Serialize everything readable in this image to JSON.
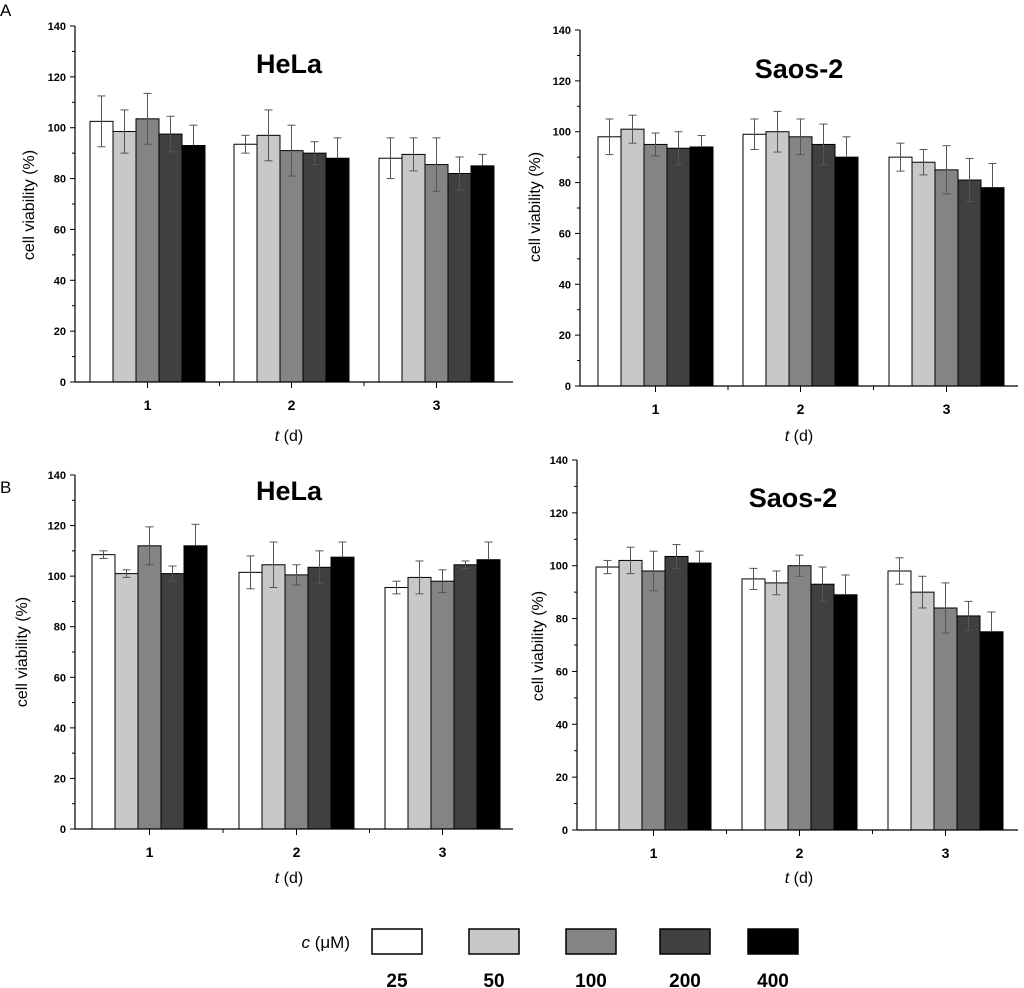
{
  "panels": [
    "A",
    "B"
  ],
  "legend": {
    "label": "c (μM)",
    "label_var": "c",
    "label_unit": "(μM)",
    "entries": [
      "25",
      "50",
      "100",
      "200",
      "400"
    ],
    "colors": [
      "#ffffff",
      "#c8c8c8",
      "#848484",
      "#404040",
      "#000000"
    ]
  },
  "chart_data": [
    {
      "type": "bar",
      "panel": "A",
      "title": "HeLa",
      "xlabel": "t (d)",
      "xlabel_var": "t",
      "xlabel_unit": "(d)",
      "ylabel": "cell viability (%)",
      "ylim": [
        0,
        140
      ],
      "yticks": [
        0,
        20,
        40,
        60,
        80,
        100,
        120,
        140
      ],
      "categories": [
        "1",
        "2",
        "3"
      ],
      "series": [
        {
          "name": "25",
          "values": [
            102.5,
            93.5,
            88
          ],
          "errors": [
            10,
            3.5,
            8
          ]
        },
        {
          "name": "50",
          "values": [
            98.5,
            97,
            89.5
          ],
          "errors": [
            8.5,
            10,
            6.5
          ]
        },
        {
          "name": "100",
          "values": [
            103.5,
            91,
            85.5
          ],
          "errors": [
            10,
            10,
            10.5
          ]
        },
        {
          "name": "200",
          "values": [
            97.5,
            90,
            82
          ],
          "errors": [
            7,
            4.5,
            6.5
          ]
        },
        {
          "name": "400",
          "values": [
            93,
            88,
            85
          ],
          "errors": [
            8,
            8,
            4.5
          ]
        }
      ]
    },
    {
      "type": "bar",
      "panel": "A",
      "title": "Saos-2",
      "xlabel": "t (d)",
      "xlabel_var": "t",
      "xlabel_unit": "(d)",
      "ylabel": "cell viability (%)",
      "ylim": [
        0,
        140
      ],
      "yticks": [
        0,
        20,
        40,
        60,
        80,
        100,
        120,
        140
      ],
      "categories": [
        "1",
        "2",
        "3"
      ],
      "series": [
        {
          "name": "25",
          "values": [
            98,
            99,
            90
          ],
          "errors": [
            7,
            6,
            5.5
          ]
        },
        {
          "name": "50",
          "values": [
            101,
            100,
            88
          ],
          "errors": [
            5.5,
            8,
            5
          ]
        },
        {
          "name": "100",
          "values": [
            95,
            98,
            85
          ],
          "errors": [
            4.5,
            7,
            9.5
          ]
        },
        {
          "name": "200",
          "values": [
            93.5,
            95,
            81
          ],
          "errors": [
            6.5,
            8,
            8.5
          ]
        },
        {
          "name": "400",
          "values": [
            94,
            90,
            78
          ],
          "errors": [
            4.5,
            8,
            9.5
          ]
        }
      ]
    },
    {
      "type": "bar",
      "panel": "B",
      "title": "HeLa",
      "xlabel": "t (d)",
      "xlabel_var": "t",
      "xlabel_unit": "(d)",
      "ylabel": "cell viability (%)",
      "ylim": [
        0,
        140
      ],
      "yticks": [
        0,
        20,
        40,
        60,
        80,
        100,
        120,
        140
      ],
      "categories": [
        "1",
        "2",
        "3"
      ],
      "series": [
        {
          "name": "25",
          "values": [
            108.5,
            101.5,
            95.5
          ],
          "errors": [
            1.5,
            6.5,
            2.5
          ]
        },
        {
          "name": "50",
          "values": [
            101,
            104.5,
            99.5
          ],
          "errors": [
            1.5,
            9,
            6.5
          ]
        },
        {
          "name": "100",
          "values": [
            112,
            100.5,
            98
          ],
          "errors": [
            7.5,
            4,
            4.5
          ]
        },
        {
          "name": "200",
          "values": [
            101,
            103.5,
            104.5
          ],
          "errors": [
            3,
            6.5,
            1.5
          ]
        },
        {
          "name": "400",
          "values": [
            112,
            107.5,
            106.5
          ],
          "errors": [
            8.5,
            6,
            7
          ]
        }
      ]
    },
    {
      "type": "bar",
      "panel": "B",
      "title": "Saos-2",
      "xlabel": "t (d)",
      "xlabel_var": "t",
      "xlabel_unit": "(d)",
      "ylabel": "cell viability (%)",
      "ylim": [
        0,
        140
      ],
      "yticks": [
        0,
        20,
        40,
        60,
        80,
        100,
        120,
        140
      ],
      "categories": [
        "1",
        "2",
        "3"
      ],
      "series": [
        {
          "name": "25",
          "values": [
            99.5,
            95,
            98
          ],
          "errors": [
            2.5,
            4,
            5
          ]
        },
        {
          "name": "50",
          "values": [
            102,
            93.5,
            90
          ],
          "errors": [
            5,
            4.5,
            6
          ]
        },
        {
          "name": "100",
          "values": [
            98,
            100,
            84
          ],
          "errors": [
            7.5,
            4,
            9.5
          ]
        },
        {
          "name": "200",
          "values": [
            103.5,
            93,
            81
          ],
          "errors": [
            4.5,
            6.5,
            5.5
          ]
        },
        {
          "name": "400",
          "values": [
            101,
            89,
            75
          ],
          "errors": [
            4.5,
            7.5,
            7.5
          ]
        }
      ]
    }
  ]
}
